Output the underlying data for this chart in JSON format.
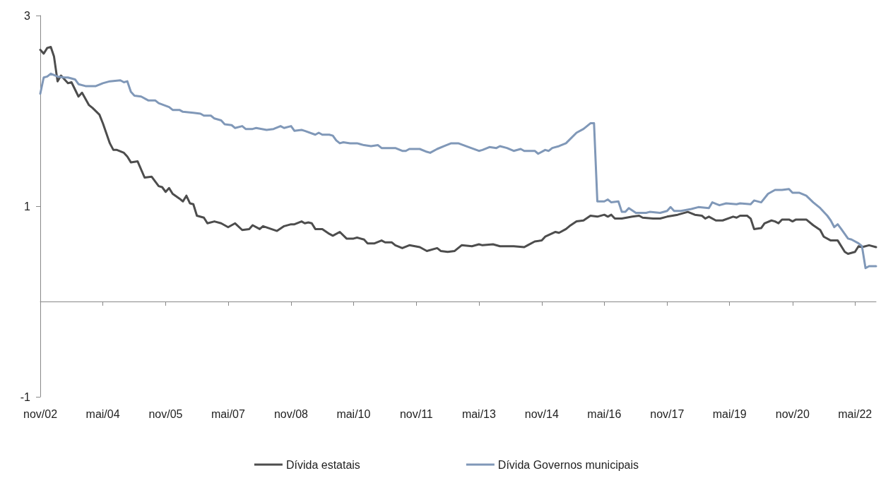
{
  "chart_data": {
    "type": "line",
    "legend": "bottom",
    "marker": "none",
    "grid": false,
    "ylim": [
      -1,
      3
    ],
    "yticks": [
      -1,
      1,
      3
    ],
    "xlim": [
      "2002-11",
      "2022-11"
    ],
    "xticks": [
      {
        "value": "2002-11",
        "label": "nov/02"
      },
      {
        "value": "2004-05",
        "label": "mai/04"
      },
      {
        "value": "2005-11",
        "label": "nov/05"
      },
      {
        "value": "2007-05",
        "label": "mai/07"
      },
      {
        "value": "2008-11",
        "label": "nov/08"
      },
      {
        "value": "2010-05",
        "label": "mai/10"
      },
      {
        "value": "2011-11",
        "label": "nov/11"
      },
      {
        "value": "2013-05",
        "label": "mai/13"
      },
      {
        "value": "2014-11",
        "label": "nov/14"
      },
      {
        "value": "2016-05",
        "label": "mai/16"
      },
      {
        "value": "2017-11",
        "label": "nov/17"
      },
      {
        "value": "2019-05",
        "label": "mai/19"
      },
      {
        "value": "2020-11",
        "label": "nov/20"
      },
      {
        "value": "2022-05",
        "label": "mai/22"
      }
    ],
    "series": [
      {
        "name": "Dívida estatais",
        "color": "#4d4d4d",
        "x": [
          "2002-11",
          "2002-12",
          "2003-01",
          "2003-02",
          "2003-03",
          "2003-04",
          "2003-05",
          "2003-07",
          "2003-08",
          "2003-10",
          "2003-11",
          "2004-01",
          "2004-02",
          "2004-04",
          "2004-05",
          "2004-07",
          "2004-08",
          "2004-09",
          "2004-11",
          "2004-12",
          "2005-01",
          "2005-03",
          "2005-05",
          "2005-07",
          "2005-09",
          "2005-10",
          "2005-11",
          "2005-12",
          "2006-01",
          "2006-03",
          "2006-04",
          "2006-05",
          "2006-06",
          "2006-07",
          "2006-08",
          "2006-10",
          "2006-11",
          "2007-01",
          "2007-03",
          "2007-05",
          "2007-07",
          "2007-09",
          "2007-11",
          "2007-12",
          "2008-02",
          "2008-03",
          "2008-07",
          "2008-09",
          "2008-11",
          "2008-12",
          "2009-02",
          "2009-03",
          "2009-04",
          "2009-05",
          "2009-06",
          "2009-08",
          "2009-10",
          "2009-11",
          "2010-01",
          "2010-03",
          "2010-05",
          "2010-06",
          "2010-08",
          "2010-09",
          "2010-11",
          "2011-01",
          "2011-02",
          "2011-04",
          "2011-05",
          "2011-07",
          "2011-09",
          "2011-12",
          "2012-02",
          "2012-05",
          "2012-06",
          "2012-08",
          "2012-10",
          "2012-12",
          "2013-03",
          "2013-05",
          "2013-06",
          "2013-09",
          "2013-11",
          "2014-01",
          "2014-03",
          "2014-06",
          "2014-07",
          "2014-09",
          "2014-11",
          "2014-12",
          "2015-03",
          "2015-04",
          "2015-06",
          "2015-07",
          "2015-09",
          "2015-11",
          "2016-01",
          "2016-03",
          "2016-05",
          "2016-06",
          "2016-07",
          "2016-08",
          "2016-10",
          "2017-01",
          "2017-03",
          "2017-04",
          "2017-07",
          "2017-09",
          "2017-11",
          "2018-02",
          "2018-05",
          "2018-07",
          "2018-09",
          "2018-10",
          "2018-11",
          "2019-01",
          "2019-03",
          "2019-06",
          "2019-07",
          "2019-08",
          "2019-10",
          "2019-11",
          "2019-12",
          "2020-02",
          "2020-03",
          "2020-05",
          "2020-06",
          "2020-07",
          "2020-08",
          "2020-10",
          "2020-11",
          "2020-12",
          "2021-03",
          "2021-05",
          "2021-07",
          "2021-08",
          "2021-10",
          "2021-12",
          "2022-02",
          "2022-03",
          "2022-05",
          "2022-06",
          "2022-07",
          "2022-09",
          "2022-11"
        ],
        "values": [
          2.64,
          2.6,
          2.66,
          2.67,
          2.57,
          2.31,
          2.37,
          2.29,
          2.3,
          2.15,
          2.19,
          2.06,
          2.03,
          1.96,
          1.87,
          1.66,
          1.59,
          1.59,
          1.56,
          1.52,
          1.46,
          1.47,
          1.3,
          1.31,
          1.21,
          1.2,
          1.15,
          1.19,
          1.13,
          1.08,
          1.05,
          1.11,
          1.03,
          1.02,
          0.9,
          0.88,
          0.82,
          0.84,
          0.82,
          0.78,
          0.82,
          0.75,
          0.76,
          0.8,
          0.76,
          0.79,
          0.74,
          0.79,
          0.81,
          0.81,
          0.84,
          0.82,
          0.83,
          0.82,
          0.76,
          0.76,
          0.71,
          0.69,
          0.73,
          0.66,
          0.66,
          0.67,
          0.65,
          0.61,
          0.61,
          0.64,
          0.62,
          0.62,
          0.59,
          0.56,
          0.59,
          0.57,
          0.53,
          0.56,
          0.53,
          0.52,
          0.53,
          0.59,
          0.58,
          0.6,
          0.59,
          0.6,
          0.58,
          0.58,
          0.58,
          0.57,
          0.59,
          0.63,
          0.64,
          0.68,
          0.73,
          0.72,
          0.76,
          0.79,
          0.84,
          0.85,
          0.9,
          0.89,
          0.91,
          0.89,
          0.91,
          0.87,
          0.87,
          0.89,
          0.9,
          0.88,
          0.87,
          0.87,
          0.89,
          0.91,
          0.94,
          0.91,
          0.9,
          0.87,
          0.89,
          0.85,
          0.85,
          0.89,
          0.88,
          0.9,
          0.9,
          0.87,
          0.76,
          0.77,
          0.82,
          0.85,
          0.84,
          0.82,
          0.86,
          0.86,
          0.84,
          0.86,
          0.86,
          0.8,
          0.75,
          0.68,
          0.64,
          0.64,
          0.52,
          0.5,
          0.52,
          0.58,
          0.57,
          0.59,
          0.57
        ]
      },
      {
        "name": "Dívida Governos municipais",
        "color": "#8098b8",
        "x": [
          "2002-11",
          "2002-12",
          "2003-01",
          "2003-02",
          "2003-04",
          "2003-06",
          "2003-07",
          "2003-09",
          "2003-10",
          "2003-12",
          "2004-03",
          "2004-05",
          "2004-07",
          "2004-10",
          "2004-11",
          "2004-12",
          "2005-01",
          "2005-02",
          "2005-04",
          "2005-06",
          "2005-08",
          "2005-09",
          "2005-12",
          "2006-01",
          "2006-03",
          "2006-04",
          "2006-07",
          "2006-09",
          "2006-10",
          "2006-12",
          "2007-01",
          "2007-03",
          "2007-04",
          "2007-06",
          "2007-07",
          "2007-09",
          "2007-10",
          "2007-12",
          "2008-01",
          "2008-04",
          "2008-06",
          "2008-08",
          "2008-09",
          "2008-11",
          "2008-12",
          "2009-02",
          "2009-03",
          "2009-06",
          "2009-07",
          "2009-08",
          "2009-10",
          "2009-11",
          "2009-12",
          "2010-01",
          "2010-02",
          "2010-04",
          "2010-06",
          "2010-08",
          "2010-10",
          "2010-12",
          "2011-01",
          "2011-05",
          "2011-07",
          "2011-08",
          "2011-09",
          "2011-12",
          "2012-02",
          "2012-03",
          "2012-05",
          "2012-07",
          "2012-09",
          "2012-11",
          "2013-02",
          "2013-05",
          "2013-06",
          "2013-08",
          "2013-10",
          "2013-11",
          "2014-01",
          "2014-03",
          "2014-05",
          "2014-06",
          "2014-09",
          "2014-10",
          "2014-12",
          "2015-01",
          "2015-02",
          "2015-04",
          "2015-06",
          "2015-09",
          "2015-11",
          "2016-01",
          "2016-02",
          "2016-03",
          "2016-05",
          "2016-06",
          "2016-07",
          "2016-09",
          "2016-10",
          "2016-11",
          "2016-12",
          "2017-02",
          "2017-05",
          "2017-06",
          "2017-09",
          "2017-11",
          "2017-12",
          "2018-01",
          "2018-03",
          "2018-06",
          "2018-08",
          "2018-11",
          "2018-12",
          "2019-02",
          "2019-04",
          "2019-07",
          "2019-08",
          "2019-11",
          "2019-12",
          "2020-02",
          "2020-04",
          "2020-06",
          "2020-08",
          "2020-10",
          "2020-11",
          "2021-01",
          "2021-03",
          "2021-05",
          "2021-07",
          "2021-09",
          "2021-10",
          "2021-11",
          "2021-12",
          "2022-01",
          "2022-03",
          "2022-04",
          "2022-06",
          "2022-07",
          "2022-08",
          "2022-09",
          "2022-11"
        ],
        "values": [
          2.18,
          2.35,
          2.36,
          2.39,
          2.36,
          2.35,
          2.35,
          2.33,
          2.28,
          2.26,
          2.26,
          2.29,
          2.31,
          2.32,
          2.3,
          2.31,
          2.2,
          2.16,
          2.15,
          2.11,
          2.11,
          2.08,
          2.04,
          2.01,
          2.01,
          1.99,
          1.98,
          1.97,
          1.95,
          1.95,
          1.92,
          1.9,
          1.86,
          1.85,
          1.82,
          1.84,
          1.81,
          1.81,
          1.82,
          1.8,
          1.81,
          1.84,
          1.82,
          1.84,
          1.79,
          1.8,
          1.79,
          1.75,
          1.77,
          1.75,
          1.75,
          1.74,
          1.69,
          1.66,
          1.67,
          1.66,
          1.66,
          1.64,
          1.63,
          1.64,
          1.61,
          1.61,
          1.58,
          1.58,
          1.6,
          1.6,
          1.57,
          1.56,
          1.6,
          1.63,
          1.66,
          1.66,
          1.62,
          1.58,
          1.59,
          1.62,
          1.61,
          1.63,
          1.61,
          1.58,
          1.6,
          1.58,
          1.58,
          1.55,
          1.59,
          1.58,
          1.61,
          1.63,
          1.66,
          1.77,
          1.81,
          1.87,
          1.87,
          1.05,
          1.05,
          1.07,
          1.04,
          1.05,
          0.94,
          0.94,
          0.98,
          0.93,
          0.93,
          0.94,
          0.93,
          0.95,
          0.99,
          0.95,
          0.95,
          0.97,
          0.99,
          0.98,
          1.04,
          1.01,
          1.03,
          1.02,
          1.03,
          1.02,
          1.06,
          1.04,
          1.13,
          1.17,
          1.17,
          1.18,
          1.14,
          1.14,
          1.11,
          1.04,
          0.98,
          0.9,
          0.85,
          0.78,
          0.81,
          0.76,
          0.66,
          0.65,
          0.61,
          0.58,
          0.35,
          0.37,
          0.37
        ]
      }
    ]
  }
}
